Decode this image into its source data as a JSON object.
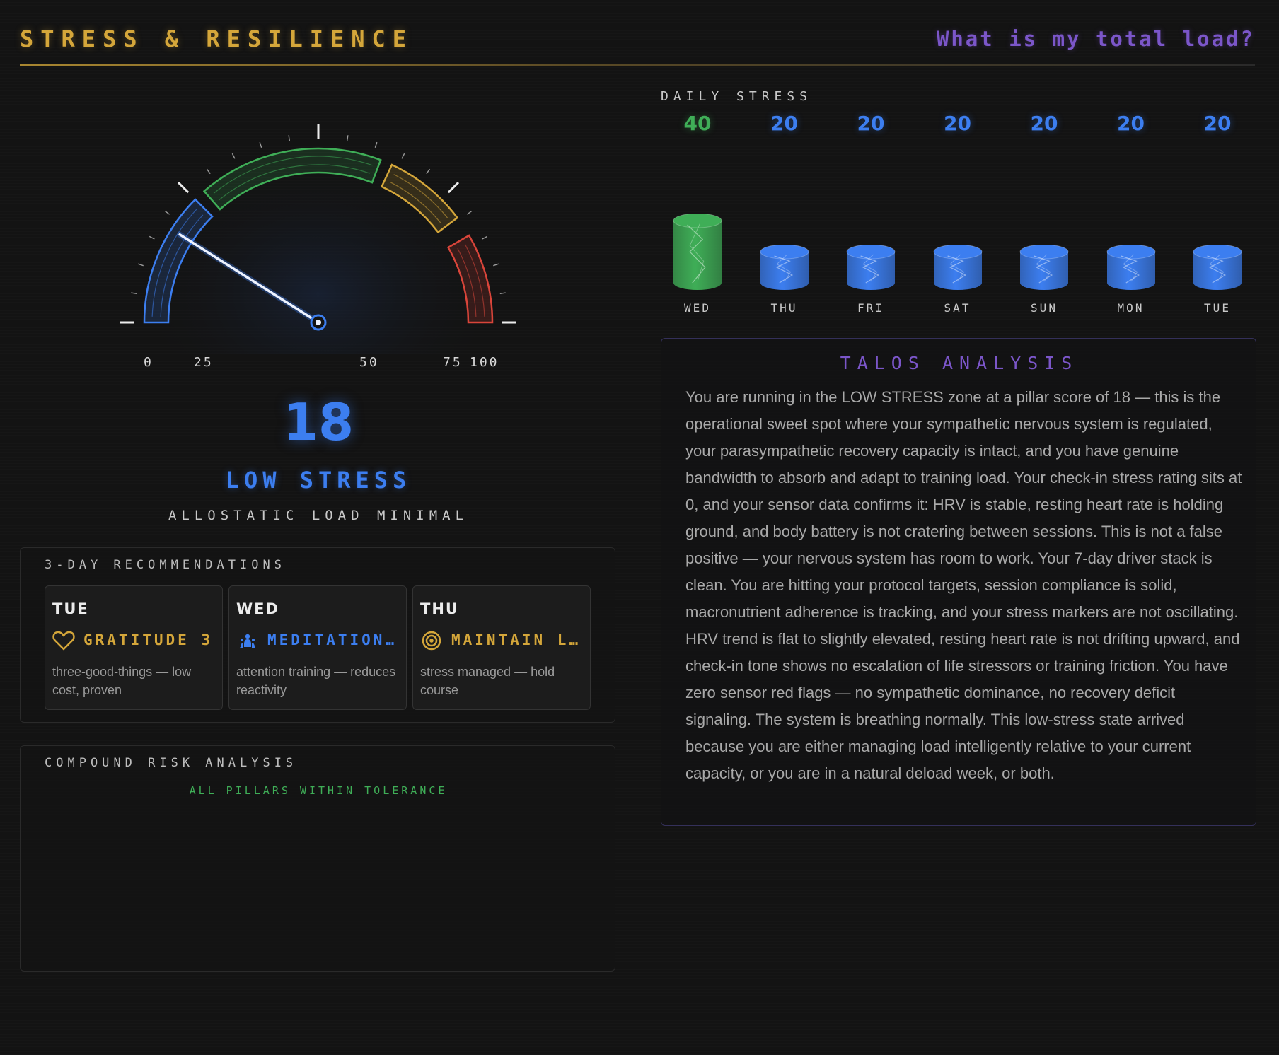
{
  "header": {
    "title": "STRESS & RESILIENCE",
    "question": "What is my total load?"
  },
  "gauge": {
    "score": "18",
    "score_value": 18,
    "max": 100,
    "zone_label": "LOW STRESS",
    "zone_sub": "ALLOSTATIC LOAD MINIMAL",
    "tick_labels": [
      "0",
      "25",
      "50",
      "75",
      "100"
    ],
    "colors": {
      "low": "#3c7ef0",
      "optimal": "#3fae57",
      "elevated": "#d4a63a",
      "high": "#d9453a"
    }
  },
  "daily": {
    "title": "DAILY STRESS",
    "days": [
      {
        "name": "WED",
        "value": "40",
        "color": "#3fae57"
      },
      {
        "name": "THU",
        "value": "20",
        "color": "#3c7ef0"
      },
      {
        "name": "FRI",
        "value": "20",
        "color": "#3c7ef0"
      },
      {
        "name": "SAT",
        "value": "20",
        "color": "#3c7ef0"
      },
      {
        "name": "SUN",
        "value": "20",
        "color": "#3c7ef0"
      },
      {
        "name": "MON",
        "value": "20",
        "color": "#3c7ef0"
      },
      {
        "name": "TUE",
        "value": "20",
        "color": "#3c7ef0"
      }
    ]
  },
  "recommendations": {
    "title": "3-DAY RECOMMENDATIONS",
    "cards": [
      {
        "day": "TUE",
        "name": "GRATITUDE 3",
        "icon": "heart-icon",
        "color": "#d4a63a",
        "desc": "three-good-things — low cost, proven"
      },
      {
        "day": "WED",
        "name": "MEDITATION PRACTICE",
        "icon": "meditation-icon",
        "color": "#3c7ef0",
        "desc": "attention training — reduces reactivity"
      },
      {
        "day": "THU",
        "name": "MAINTAIN LOAD",
        "icon": "target-icon",
        "color": "#d4a63a",
        "desc": "stress managed — hold course"
      }
    ]
  },
  "risk": {
    "title": "COMPOUND RISK ANALYSIS",
    "status": "ALL PILLARS WITHIN TOLERANCE"
  },
  "analysis": {
    "title": "TALOS ANALYSIS",
    "body": "You are running in the LOW STRESS zone at a pillar score of 18 — this is the operational sweet spot where your sympathetic nervous system is regulated, your parasympathetic recovery capacity is intact, and you have genuine bandwidth to absorb and adapt to training load. Your check-in stress rating sits at 0, and your sensor data confirms it: HRV is stable, resting heart rate is holding ground, and body battery is not cratering between sessions. This is not a false positive — your nervous system has room to work. Your 7-day driver stack is clean. You are hitting your protocol targets, session compliance is solid, macronutrient adherence is tracking, and your stress markers are not oscillating. HRV trend is flat to slightly elevated, resting heart rate is not drifting upward, and check-in tone shows no escalation of life stressors or training friction. You have zero sensor red flags — no sympathetic dominance, no recovery deficit signaling. The system is breathing normally. This low-stress state arrived because you are either managing load intelligently relative to your current capacity, or you are in a natural deload week, or both."
  }
}
